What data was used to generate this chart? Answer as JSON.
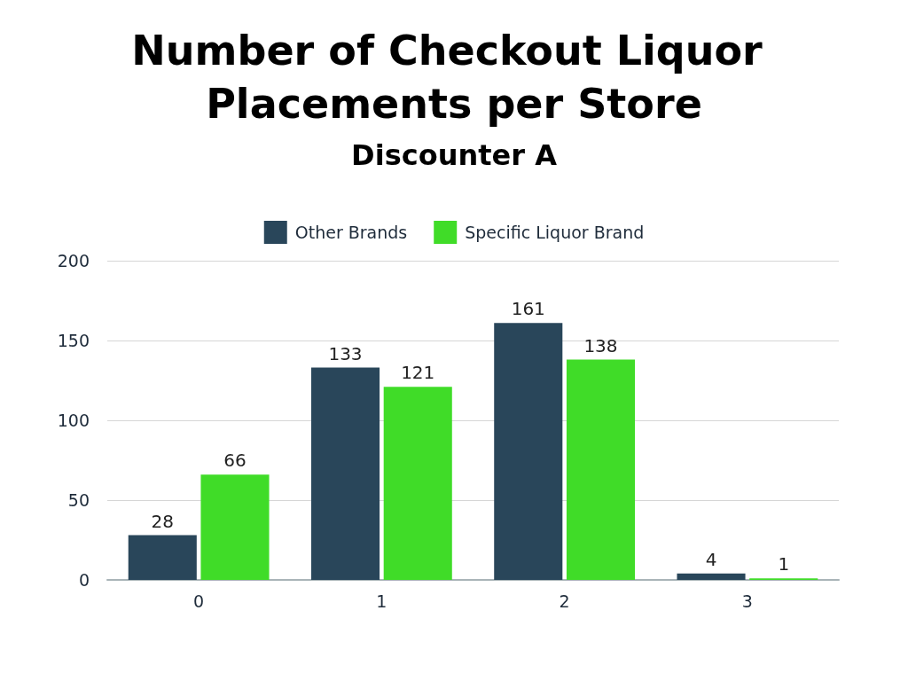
{
  "chart_data": {
    "type": "bar",
    "title": "Number of Checkout Liquor Placements per Store",
    "subtitle": "Discounter A",
    "categories": [
      "0",
      "1",
      "2",
      "3"
    ],
    "series": [
      {
        "name": "Other Brands",
        "color": "#29465a",
        "values": [
          28,
          133,
          161,
          4
        ]
      },
      {
        "name": "Specific Liquor Brand",
        "color": "#40dc28",
        "values": [
          66,
          121,
          138,
          1
        ]
      }
    ],
    "ylim": [
      0,
      200
    ],
    "yticks": [
      0,
      50,
      100,
      150,
      200
    ],
    "grid": "y",
    "legend": "top",
    "data_labels": true
  }
}
